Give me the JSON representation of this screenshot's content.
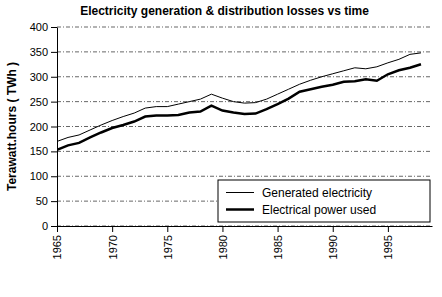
{
  "chart_data": {
    "type": "line",
    "title": "Electricity generation & distribution losses vs time",
    "y_label": "Terawatt.hours ( TWh )",
    "x": [
      1965,
      1966,
      1967,
      1968,
      1969,
      1970,
      1971,
      1972,
      1973,
      1974,
      1975,
      1976,
      1977,
      1978,
      1979,
      1980,
      1981,
      1982,
      1983,
      1984,
      1985,
      1986,
      1987,
      1988,
      1989,
      1990,
      1991,
      1992,
      1993,
      1994,
      1995,
      1996,
      1997,
      1998
    ],
    "series": [
      {
        "name": "Generated electricity",
        "color": "#000000",
        "line_style": "solid",
        "values": [
          170,
          178,
          183,
          193,
          203,
          212,
          220,
          227,
          237,
          240,
          240,
          245,
          250,
          255,
          265,
          257,
          250,
          247,
          248,
          255,
          265,
          275,
          285,
          293,
          300,
          306,
          312,
          318,
          316,
          320,
          328,
          335,
          345,
          348
        ]
      },
      {
        "name": "Electrical power used",
        "color": "#000000",
        "line_style": "solid",
        "values": [
          153,
          162,
          167,
          178,
          188,
          197,
          203,
          210,
          220,
          222,
          222,
          223,
          228,
          230,
          242,
          232,
          228,
          225,
          226,
          235,
          245,
          256,
          270,
          275,
          280,
          284,
          290,
          291,
          295,
          292,
          305,
          313,
          318,
          325
        ]
      }
    ],
    "xlim": [
      1965,
      1999
    ],
    "xticks": [
      1965,
      1970,
      1975,
      1980,
      1985,
      1990,
      1995
    ],
    "ylim": [
      0,
      400
    ],
    "yticks": [
      0,
      50,
      100,
      150,
      200,
      250,
      300,
      350,
      400
    ],
    "grid": true,
    "legend": "lower right"
  }
}
